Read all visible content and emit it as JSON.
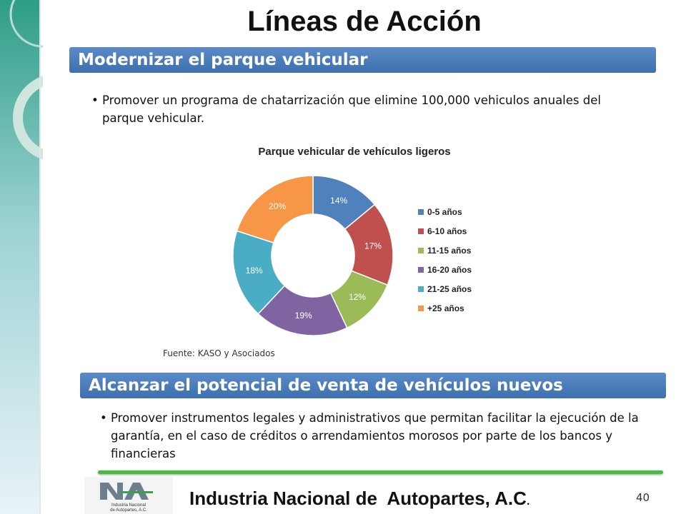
{
  "title": "Líneas de Acción",
  "sections": [
    {
      "heading": "Modernizar el parque vehicular",
      "bullets": [
        "Promover un programa de chatarrización que elimine 100,000 vehiculos anuales del parque vehicular."
      ]
    },
    {
      "heading": "Alcanzar el potencial de venta de vehículos nuevos",
      "bullets": [
        "Promover instrumentos legales y administrativos que  permitan facilitar la ejecución de la garantía, en el caso de créditos o arrendamientos morosos por parte de los bancos y financieras"
      ]
    }
  ],
  "chart_data": {
    "type": "pie",
    "donut": true,
    "title": "Parque vehicular de vehículos ligeros",
    "categories": [
      "0-5 años",
      "6-10 años",
      "11-15 años",
      "16-20 años",
      "21-25 años",
      "+25 años"
    ],
    "values": [
      14,
      17,
      12,
      19,
      18,
      20
    ],
    "value_labels": [
      "14%",
      "17%",
      "12%",
      "19%",
      "18%",
      "20%"
    ],
    "colors": [
      "#4f81bd",
      "#c0504d",
      "#9bbb59",
      "#8064a2",
      "#4bacc6",
      "#f79646"
    ],
    "legend": "right"
  },
  "source": "Fuente: KASO y Asociados",
  "footer": {
    "org": "Industria Nacional de  Autopartes, A.C",
    "suffix": ".",
    "page": "40"
  },
  "logo": {
    "lines": [
      "Industria Nacional",
      "de Autopartes, A.C."
    ]
  }
}
